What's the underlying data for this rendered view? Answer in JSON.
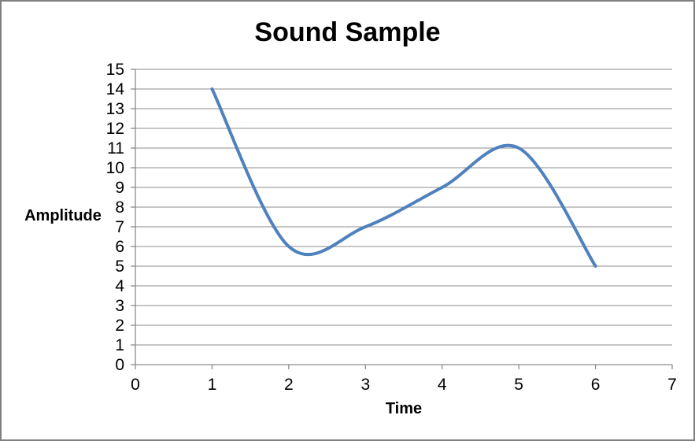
{
  "window": {
    "background_color": "#ffffff",
    "border_color": "#808080"
  },
  "chart_data": {
    "type": "line",
    "title": "Sound Sample",
    "xlabel": "Time",
    "ylabel": "Amplitude",
    "x": [
      1,
      2,
      3,
      4,
      5,
      6
    ],
    "series": [
      {
        "name": "Sound Sample",
        "values": [
          14,
          6,
          7,
          9,
          11,
          5
        ],
        "color": "#4F81BD",
        "smooth": true,
        "line_width": 4
      }
    ],
    "xlim": [
      0,
      7
    ],
    "ylim": [
      0,
      15
    ],
    "x_ticks": [
      0,
      1,
      2,
      3,
      4,
      5,
      6,
      7
    ],
    "y_ticks": [
      0,
      1,
      2,
      3,
      4,
      5,
      6,
      7,
      8,
      9,
      10,
      11,
      12,
      13,
      14,
      15
    ],
    "grid": "horizontal",
    "gridline_color": "#8c8c8c",
    "axis_color": "#8c8c8c",
    "tick_label_color": "#000000",
    "legend": "none",
    "markers": "none"
  }
}
